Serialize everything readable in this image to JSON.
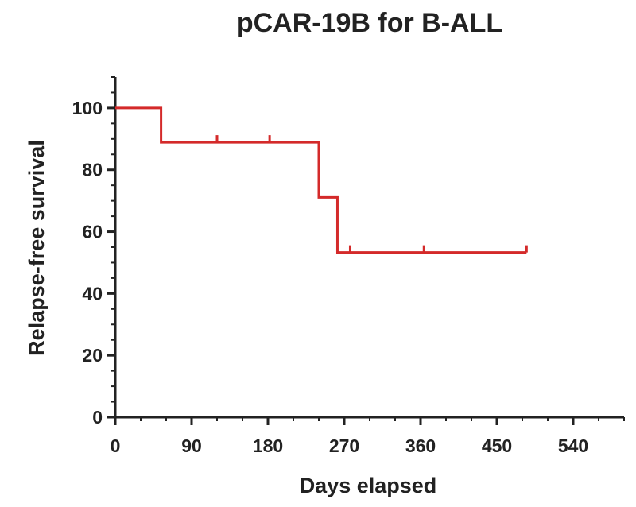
{
  "chart_data": {
    "type": "line",
    "title": "pCAR-19B for B-ALL",
    "xlabel": "Days elapsed",
    "ylabel": "Relapse-free survival",
    "xlim": [
      0,
      600
    ],
    "ylim": [
      0,
      110
    ],
    "x_ticks": [
      0,
      90,
      180,
      270,
      360,
      450,
      540
    ],
    "y_ticks": [
      0,
      20,
      40,
      60,
      80,
      100
    ],
    "series": [
      {
        "color": "#d42a2a",
        "step_points": [
          [
            0,
            100
          ],
          [
            54,
            100
          ],
          [
            54,
            88.9
          ],
          [
            240,
            88.9
          ],
          [
            240,
            71.1
          ],
          [
            262,
            71.1
          ],
          [
            262,
            53.3
          ],
          [
            485,
            53.3
          ]
        ],
        "censor_marks": [
          [
            120,
            88.9
          ],
          [
            182,
            88.9
          ],
          [
            277,
            53.3
          ],
          [
            364,
            53.3
          ],
          [
            485,
            53.3
          ]
        ]
      }
    ]
  }
}
